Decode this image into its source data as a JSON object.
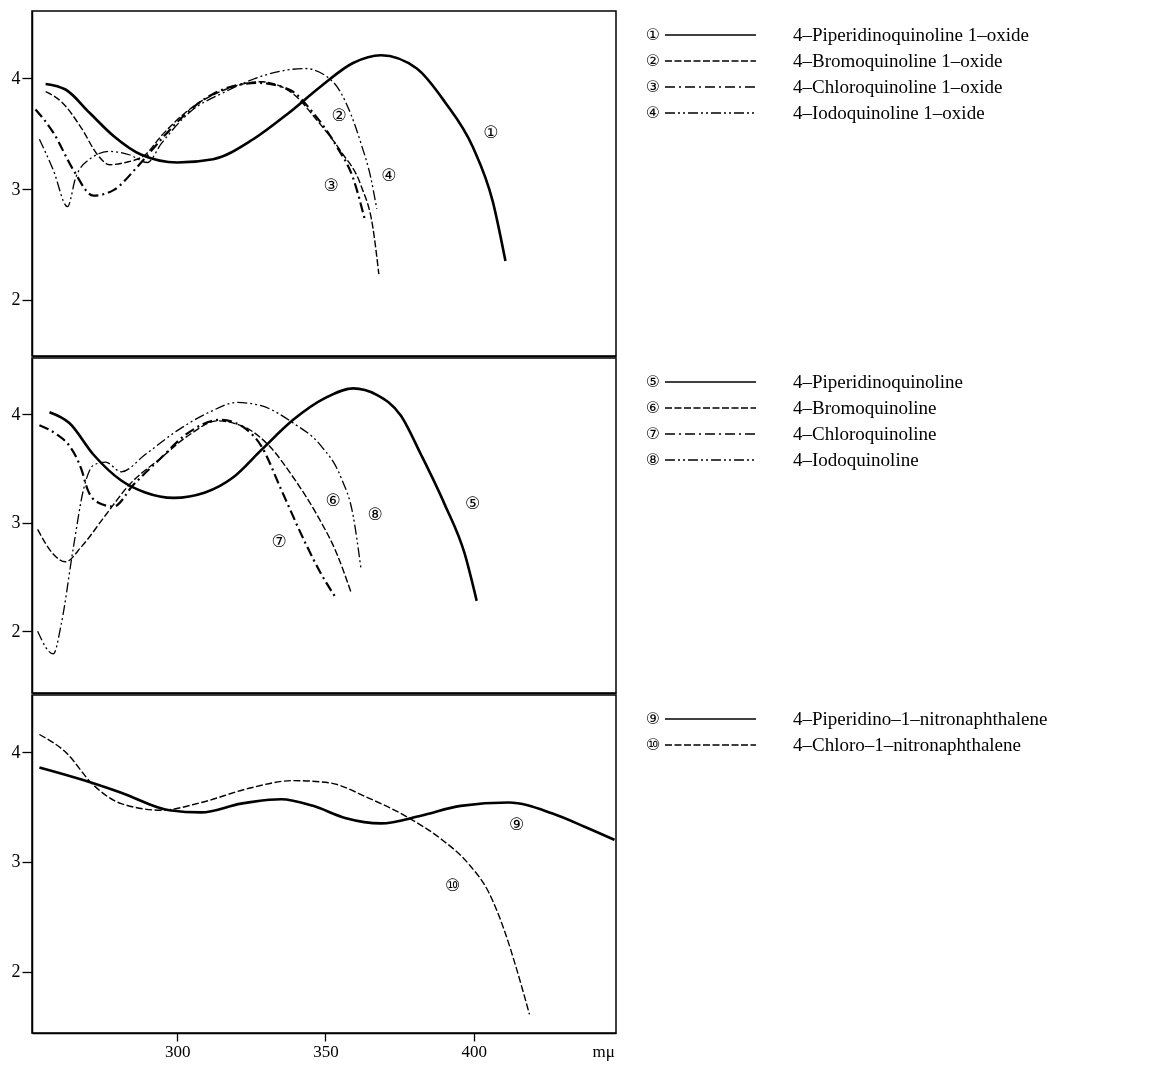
{
  "chart_data": [
    {
      "type": "line",
      "xlim": [
        251,
        448
      ],
      "ylim": [
        1.49,
        4.61
      ],
      "yticks": [
        2,
        3,
        4
      ],
      "tick_labels": "y",
      "legend": "right",
      "series": [
        {
          "name": "4–Piperidinoquinoline 1–oxide",
          "color": "#000000",
          "line_style": "solid",
          "x": [
            255.6,
            262.3,
            270.4,
            278.5,
            287.9,
            300,
            312.1,
            325.6,
            337.7,
            348.5,
            359.3,
            368.7,
            380.8,
            390.2,
            399.7,
            406.4,
            410.7
          ],
          "values": [
            3.95,
            3.9,
            3.69,
            3.48,
            3.31,
            3.24,
            3.27,
            3.45,
            3.69,
            3.93,
            4.14,
            4.21,
            4.09,
            3.79,
            3.38,
            2.89,
            2.35
          ]
        },
        {
          "name": "4–Bromoquinoline 1–oxide",
          "color": "#000000",
          "line_style": "dashed",
          "x": [
            255.6,
            260.9,
            267.7,
            273.1,
            277.1,
            282.5,
            289.2,
            294.6,
            302.7,
            316.2,
            328.3,
            339.1,
            347.2,
            355.2,
            362,
            366,
            368
          ],
          "values": [
            3.88,
            3.79,
            3.55,
            3.31,
            3.22,
            3.24,
            3.31,
            3.48,
            3.69,
            3.9,
            3.97,
            3.86,
            3.62,
            3.34,
            3.03,
            2.65,
            2.23
          ]
        },
        {
          "name": "4–Chloroquinoline 1–oxide",
          "color": "#000000",
          "line_style": "dashdot",
          "x": [
            252.2,
            258.2,
            265,
            271.7,
            278.5,
            286.5,
            294.6,
            301.3,
            312.1,
            326.9,
            337.7,
            345.8,
            353.9,
            359.3,
            363.3
          ],
          "values": [
            3.72,
            3.51,
            3.17,
            2.94,
            2.99,
            3.2,
            3.45,
            3.64,
            3.86,
            3.96,
            3.9,
            3.69,
            3.38,
            3.1,
            2.72
          ]
        },
        {
          "name": "4–Iodoquinoline 1–oxide",
          "color": "#000000",
          "line_style": "dashdotdot",
          "x": [
            253.5,
            258.2,
            263,
            265.7,
            270.4,
            277.1,
            283.8,
            289.9,
            294.6,
            304,
            316.2,
            329.6,
            343.1,
            352.5,
            357.9,
            362,
            365.3,
            367.3
          ],
          "values": [
            3.45,
            3.17,
            2.84,
            3.1,
            3.27,
            3.34,
            3.31,
            3.24,
            3.41,
            3.69,
            3.88,
            4.03,
            4.09,
            3.97,
            3.72,
            3.41,
            3.1,
            2.82
          ]
        }
      ],
      "annotations": [
        "①",
        "②",
        "③",
        "④"
      ]
    },
    {
      "type": "line",
      "xlim": [
        251,
        448
      ],
      "ylim": [
        1.43,
        4.52
      ],
      "yticks": [
        2,
        3,
        4
      ],
      "tick_labels": "y",
      "legend": "right",
      "series": [
        {
          "name": "4–Piperidinoquinoline",
          "color": "#000000",
          "line_style": "solid",
          "x": [
            256.9,
            263.6,
            271.7,
            281.1,
            289.2,
            298.7,
            309.4,
            318.9,
            328.3,
            339.1,
            349.8,
            359.3,
            367.3,
            375.4,
            382.2,
            390.2,
            397,
            401
          ],
          "values": [
            4.02,
            3.92,
            3.63,
            3.39,
            3.28,
            3.23,
            3.28,
            3.42,
            3.67,
            3.95,
            4.15,
            4.24,
            4.18,
            3.99,
            3.63,
            3.17,
            2.71,
            2.28
          ]
        },
        {
          "name": "4–Bromoquinoline",
          "color": "#000000",
          "line_style": "dashed",
          "x": [
            252.9,
            258.2,
            262.3,
            267.7,
            275.8,
            283.8,
            294.6,
            304,
            313.5,
            322.9,
            331,
            339.1,
            347.2,
            353.9,
            358.6
          ],
          "values": [
            2.94,
            2.71,
            2.64,
            2.78,
            3.07,
            3.35,
            3.6,
            3.81,
            3.94,
            3.88,
            3.71,
            3.42,
            3.07,
            2.71,
            2.36
          ]
        },
        {
          "name": "4–Chloroquinoline",
          "color": "#000000",
          "line_style": "dashdot",
          "x": [
            253.5,
            259.6,
            263.6,
            267.7,
            269.7,
            273.1,
            278.5,
            285.2,
            294.6,
            302.7,
            314.8,
            322.9,
            328.3,
            335,
            343.1,
            348.5,
            353.2
          ],
          "values": [
            3.9,
            3.81,
            3.71,
            3.49,
            3.31,
            3.19,
            3.15,
            3.35,
            3.6,
            3.81,
            3.95,
            3.87,
            3.71,
            3.31,
            2.82,
            2.53,
            2.32
          ]
        },
        {
          "name": "4–Iodoquinoline",
          "color": "#000000",
          "line_style": "dashdotdot",
          "x": [
            252.9,
            258.2,
            260.9,
            265,
            268.4,
            271.7,
            275.8,
            281.1,
            289.2,
            300,
            310.8,
            320.2,
            328.3,
            339.1,
            348.5,
            355.2,
            359.3,
            362
          ],
          "values": [
            2.0,
            1.79,
            2.07,
            2.78,
            3.31,
            3.53,
            3.56,
            3.47,
            3.63,
            3.85,
            4.02,
            4.11,
            4.08,
            3.92,
            3.71,
            3.42,
            3.07,
            2.57
          ]
        }
      ],
      "annotations": [
        "⑤",
        "⑥",
        "⑦",
        "⑧"
      ]
    },
    {
      "type": "line",
      "xlim": [
        251,
        448
      ],
      "ylim": [
        1.44,
        4.52
      ],
      "xticks": [
        300,
        350,
        400
      ],
      "yticks": [
        2,
        3,
        4
      ],
      "xlabel": "mμ",
      "legend": "right",
      "series": [
        {
          "name": "4–Piperidino–1–nitronaphthalene",
          "color": "#000000",
          "line_style": "solid",
          "x": [
            253.5,
            267.7,
            281.1,
            297.3,
            308.1,
            321.5,
            335,
            345.8,
            356.6,
            368.7,
            382.2,
            395.6,
            411.8,
            426.6,
            437.4,
            447.5
          ],
          "values": [
            3.86,
            3.75,
            3.63,
            3.47,
            3.45,
            3.53,
            3.57,
            3.51,
            3.4,
            3.35,
            3.42,
            3.51,
            3.54,
            3.44,
            3.32,
            3.2
          ]
        },
        {
          "name": "4–Chloro–1–nitronaphthalene",
          "color": "#000000",
          "line_style": "dashed",
          "x": [
            253.5,
            262.3,
            271.7,
            281.1,
            294.6,
            308.1,
            324.2,
            339.1,
            351.2,
            364.6,
            378.1,
            388.9,
            398.3,
            405.1,
            410.4,
            414.5,
            418.8
          ],
          "values": [
            4.16,
            4.0,
            3.7,
            3.53,
            3.47,
            3.54,
            3.67,
            3.74,
            3.72,
            3.58,
            3.4,
            3.21,
            2.98,
            2.72,
            2.37,
            2.02,
            1.61
          ]
        }
      ],
      "annotations": [
        "⑨",
        "⑩"
      ]
    }
  ]
}
